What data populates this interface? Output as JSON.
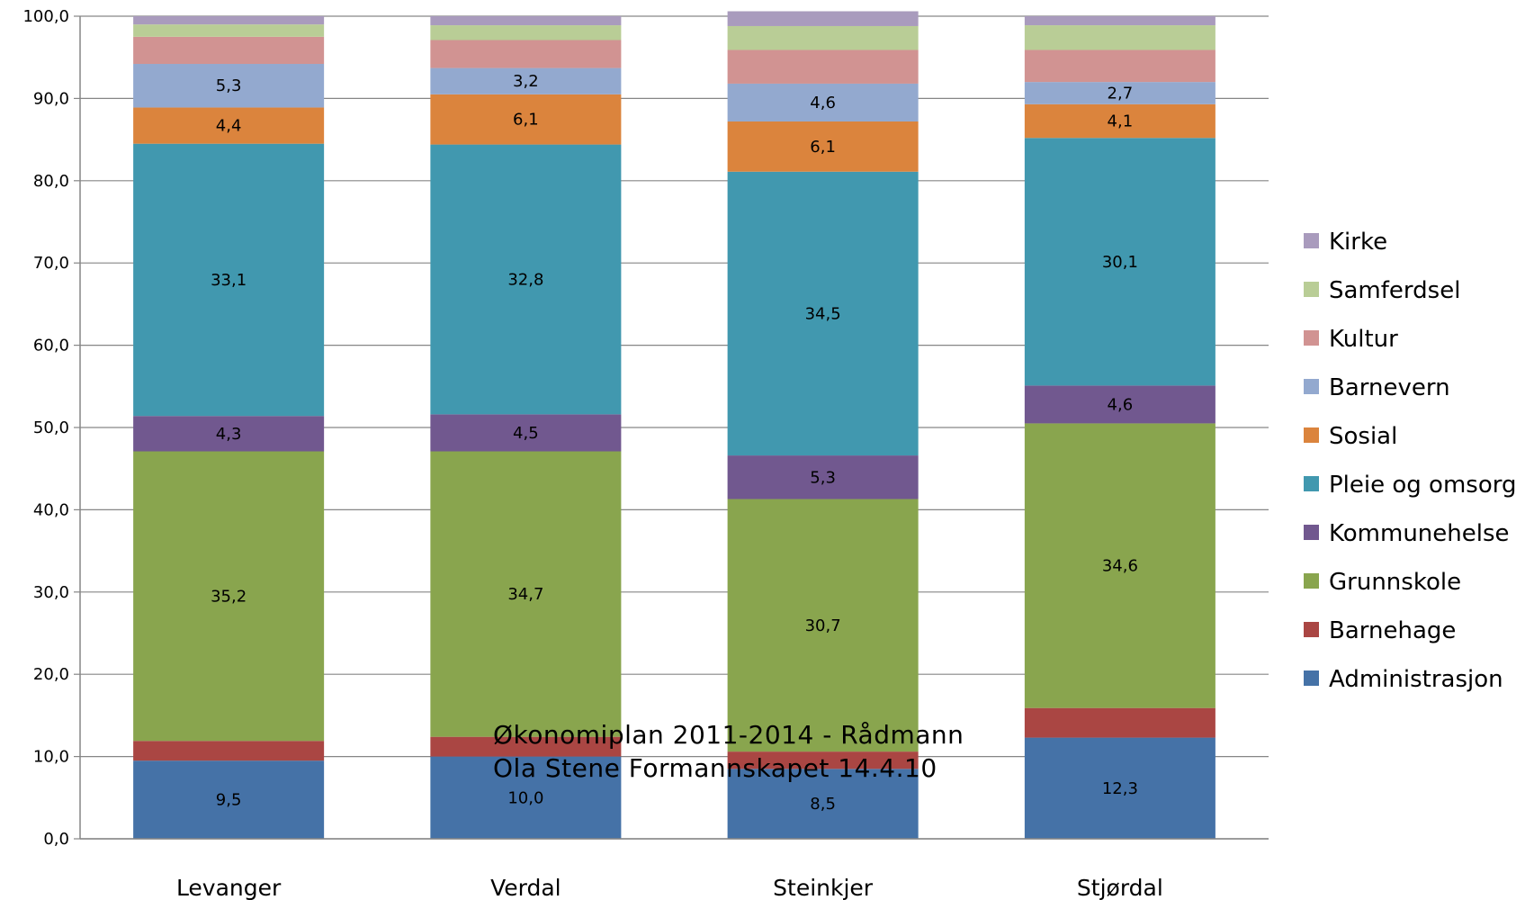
{
  "chart_data": {
    "type": "bar",
    "stacked": true,
    "percent_scale": true,
    "categories": [
      "Levanger",
      "Verdal",
      "Steinkjer",
      "Stjørdal"
    ],
    "ylim": [
      0,
      100
    ],
    "yticks": [
      "0,0",
      "10,0",
      "20,0",
      "30,0",
      "40,0",
      "50,0",
      "60,0",
      "70,0",
      "80,0",
      "90,0",
      "100,0"
    ],
    "grid": true,
    "legend_position": "right",
    "series": [
      {
        "name": "Administrasjon",
        "color": "#4572A7",
        "values": [
          9.5,
          10.0,
          8.5,
          12.3
        ],
        "labels": [
          "9,5",
          "10,0",
          "8,5",
          "12,3"
        ]
      },
      {
        "name": "Barnehage",
        "color": "#AA4643",
        "values": [
          2.4,
          2.4,
          2.1,
          3.6
        ],
        "labels": [
          "",
          "",
          "",
          ""
        ]
      },
      {
        "name": "Grunnskole",
        "color": "#89A54E",
        "values": [
          35.2,
          34.7,
          30.7,
          34.6
        ],
        "labels": [
          "35,2",
          "34,7",
          "30,7",
          "34,6"
        ]
      },
      {
        "name": "Kommunehelse",
        "color": "#71588F",
        "values": [
          4.3,
          4.5,
          5.3,
          4.6
        ],
        "labels": [
          "4,3",
          "4,5",
          "5,3",
          "4,6"
        ]
      },
      {
        "name": "Pleie og omsorg",
        "color": "#4198AF",
        "values": [
          33.1,
          32.8,
          34.5,
          30.1
        ],
        "labels": [
          "33,1",
          "32,8",
          "34,5",
          "30,1"
        ]
      },
      {
        "name": "Sosial",
        "color": "#DB843D",
        "values": [
          4.4,
          6.1,
          6.1,
          4.1
        ],
        "labels": [
          "4,4",
          "6,1",
          "6,1",
          "4,1"
        ]
      },
      {
        "name": "Barnevern",
        "color": "#93A9CF",
        "values": [
          5.3,
          3.2,
          4.6,
          2.7
        ],
        "labels": [
          "5,3",
          "3,2",
          "4,6",
          "2,7"
        ]
      },
      {
        "name": "Kultur",
        "color": "#D19392",
        "values": [
          3.3,
          3.4,
          4.1,
          3.9
        ],
        "labels": [
          "",
          "",
          "",
          ""
        ]
      },
      {
        "name": "Samferdsel",
        "color": "#B9CD96",
        "values": [
          1.5,
          1.8,
          2.9,
          3.0
        ],
        "labels": [
          "",
          "",
          "",
          ""
        ]
      },
      {
        "name": "Kirke",
        "color": "#A99BBD",
        "values": [
          1.0,
          1.1,
          1.8,
          1.1
        ],
        "labels": [
          "",
          "",
          "",
          ""
        ]
      }
    ],
    "annotation": [
      "Økonomiplan 2011-2014 - Rådmann",
      "Ola Stene Formannskapet 14.4.10"
    ]
  }
}
